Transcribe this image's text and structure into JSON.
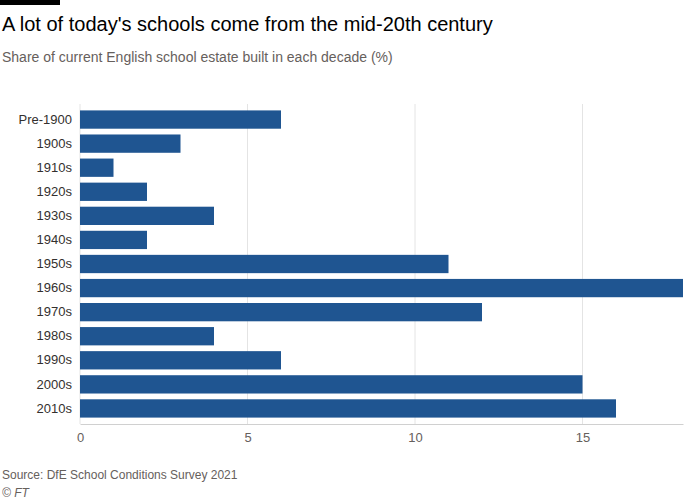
{
  "chart_data": {
    "type": "bar",
    "orientation": "horizontal",
    "title": "A lot of today's schools come from the mid-20th century",
    "subtitle": "Share of current English school estate built in each decade (%)",
    "annotations": [
      "Source: DfE School Conditions Survey 2021",
      "© FT"
    ],
    "categories": [
      "Pre-1900",
      "1900s",
      "1910s",
      "1920s",
      "1930s",
      "1940s",
      "1950s",
      "1960s",
      "1970s",
      "1980s",
      "1990s",
      "2000s",
      "2010s"
    ],
    "values": [
      6,
      3,
      1,
      2,
      4,
      2,
      11,
      18,
      12,
      4,
      6,
      15,
      16
    ],
    "color": "#1f5591",
    "xlim": [
      0,
      18
    ],
    "xticks": [
      0,
      5,
      10,
      15
    ],
    "grid": true
  }
}
